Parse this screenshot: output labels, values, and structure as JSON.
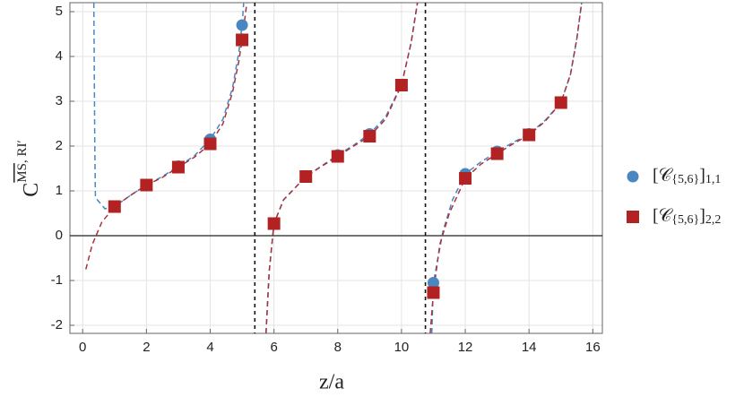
{
  "chart_data": {
    "type": "scatter",
    "xlabel": "z/a",
    "ylabel": {
      "base": "C",
      "sup_over": "MS",
      "sup": ", RI′"
    },
    "xlim": [
      -0.4,
      16.3
    ],
    "ylim": [
      -2.18,
      5.2
    ],
    "xticks": [
      0,
      2,
      4,
      6,
      8,
      10,
      12,
      14,
      16
    ],
    "yticks": [
      -2,
      -1,
      0,
      1,
      2,
      3,
      4,
      5
    ],
    "grid": true,
    "hlines": [
      0
    ],
    "vlines": [
      5.4,
      10.75
    ],
    "series": [
      {
        "name": [
          "[𝒞",
          "{5,6}",
          "]",
          "1,1"
        ],
        "marker": "circle",
        "color": "#4a86c0",
        "x": [
          1,
          2,
          3,
          4,
          5,
          6,
          7,
          8,
          9,
          10,
          11,
          12,
          13,
          14,
          15
        ],
        "values": [
          0.65,
          1.13,
          1.55,
          2.15,
          4.7,
          0.27,
          1.32,
          1.8,
          2.27,
          3.37,
          -1.05,
          1.38,
          1.88,
          2.27,
          2.97
        ]
      },
      {
        "name": [
          "[𝒞",
          "{5,6}",
          "]",
          "2,2"
        ],
        "marker": "square",
        "color": "#b22222",
        "x": [
          1,
          2,
          3,
          4,
          5,
          6,
          7,
          8,
          9,
          10,
          11,
          12,
          13,
          14,
          15
        ],
        "values": [
          0.65,
          1.13,
          1.53,
          2.05,
          4.37,
          0.27,
          1.32,
          1.77,
          2.22,
          3.36,
          -1.27,
          1.28,
          1.83,
          2.25,
          2.97
        ]
      }
    ],
    "curves": [
      {
        "color": "#4a86c0",
        "x": [
          0.35,
          0.38,
          0.4,
          0.7,
          1,
          1.5,
          2,
          2.5,
          3,
          3.5,
          4,
          4.4,
          4.7,
          4.9,
          5.0,
          5.05,
          null,
          5.75,
          5.85,
          6,
          6.3,
          7,
          7.5,
          8,
          8.5,
          9,
          9.5,
          10,
          10.3,
          10.5,
          null,
          10.95,
          11,
          11.3,
          11.6,
          12,
          12.5,
          13,
          13.5,
          14,
          14.5,
          15,
          15.3,
          15.5,
          15.65
        ],
        "values": [
          5.2,
          2,
          0.85,
          0.6,
          0.65,
          0.9,
          1.13,
          1.32,
          1.55,
          1.78,
          2.15,
          2.6,
          3.3,
          4.1,
          4.7,
          5.2,
          null,
          -2.18,
          -0.8,
          0.27,
          0.8,
          1.32,
          1.56,
          1.8,
          2.02,
          2.27,
          2.65,
          3.37,
          4.3,
          5.2,
          null,
          -2.18,
          -1.05,
          0.1,
          0.8,
          1.38,
          1.65,
          1.88,
          2.08,
          2.27,
          2.57,
          2.97,
          3.6,
          4.4,
          5.2
        ]
      },
      {
        "color": "#a8323e",
        "x": [
          0.1,
          0.3,
          0.6,
          1,
          1.5,
          2,
          2.5,
          3,
          3.5,
          4,
          4.4,
          4.7,
          4.9,
          5.0,
          5.15,
          null,
          5.75,
          5.85,
          6,
          6.3,
          7,
          7.5,
          8,
          8.5,
          9,
          9.5,
          10,
          10.3,
          10.5,
          null,
          10.9,
          11,
          11.2,
          11.5,
          12,
          12.5,
          13,
          13.5,
          14,
          14.5,
          15,
          15.3,
          15.5,
          15.65
        ],
        "values": [
          -0.75,
          -0.2,
          0.3,
          0.65,
          0.9,
          1.13,
          1.3,
          1.53,
          1.75,
          2.05,
          2.5,
          3.2,
          3.9,
          4.37,
          5.2,
          null,
          -2.18,
          -0.8,
          0.27,
          0.8,
          1.32,
          1.55,
          1.77,
          2.0,
          2.22,
          2.6,
          3.36,
          4.3,
          5.2,
          null,
          -2.18,
          -1.27,
          -0.2,
          0.5,
          1.28,
          1.6,
          1.83,
          2.05,
          2.25,
          2.55,
          2.97,
          3.6,
          4.4,
          5.2
        ]
      }
    ]
  }
}
